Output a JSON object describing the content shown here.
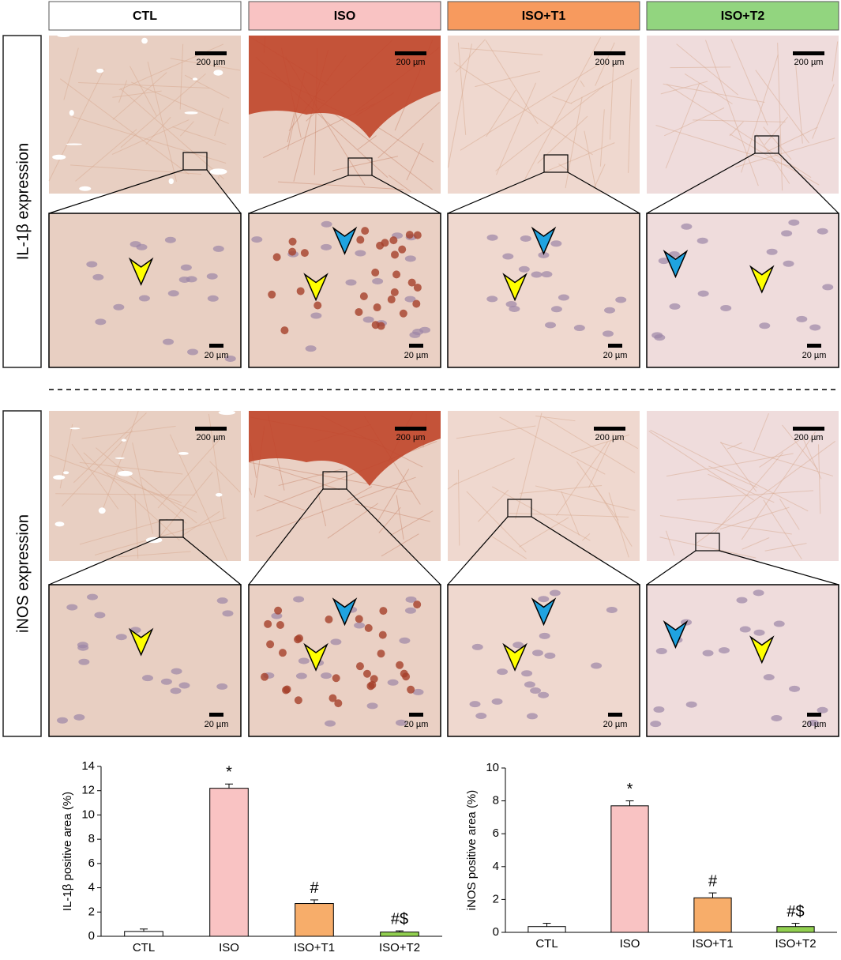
{
  "headers": [
    {
      "label": "CTL",
      "color": "#ffffff"
    },
    {
      "label": "ISO",
      "color": "#f9c3c3"
    },
    {
      "label": "ISO+T1",
      "color": "#f79a5e"
    },
    {
      "label": "ISO+T2",
      "color": "#92d57f"
    }
  ],
  "row_labels": [
    "IL-1β expression",
    "iNOS expression"
  ],
  "scale_bars": [
    "200 µm",
    "20 µm"
  ],
  "chart_data": [
    {
      "type": "bar",
      "y_label": "IL-1β positive area (%)",
      "categories": [
        "CTL",
        "ISO",
        "ISO+T1",
        "ISO+T2"
      ],
      "values": [
        0.4,
        12.2,
        2.7,
        0.35
      ],
      "errors": [
        0.2,
        0.35,
        0.3,
        0.1
      ],
      "bar_labels": [
        null,
        "*",
        "#",
        "#$"
      ],
      "colors": [
        "#ffffff",
        "#f9c3c3",
        "#f7ad6a",
        "#92d050"
      ],
      "ylim": [
        0,
        14
      ],
      "yticks": [
        0,
        2,
        4,
        6,
        8,
        10,
        12,
        14
      ]
    },
    {
      "type": "bar",
      "y_label": "iNOS positive area (%)",
      "categories": [
        "CTL",
        "ISO",
        "ISO+T1",
        "ISO+T2"
      ],
      "values": [
        0.35,
        7.7,
        2.1,
        0.35
      ],
      "errors": [
        0.2,
        0.3,
        0.3,
        0.2
      ],
      "bar_labels": [
        null,
        "*",
        "#",
        "#$"
      ],
      "colors": [
        "#ffffff",
        "#f9c3c3",
        "#f7ad6a",
        "#92d050"
      ],
      "ylim": [
        0,
        10
      ],
      "yticks": [
        0,
        2,
        4,
        6,
        8,
        10
      ]
    }
  ]
}
